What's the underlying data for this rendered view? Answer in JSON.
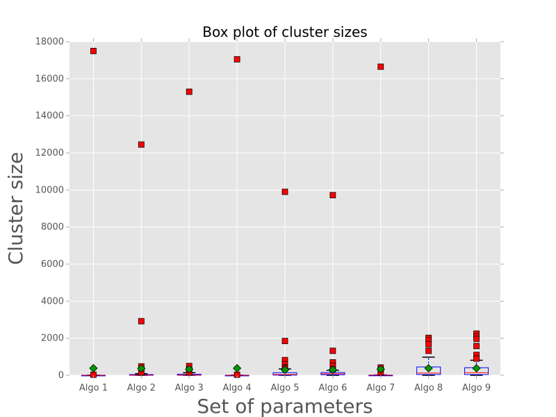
{
  "chart_data": {
    "type": "box",
    "title": "Box plot of cluster sizes",
    "xlabel": "Set of parameters",
    "ylabel": "Cluster size",
    "ylim": [
      0,
      18000
    ],
    "yticks": [
      0,
      2000,
      4000,
      6000,
      8000,
      10000,
      12000,
      14000,
      16000,
      18000
    ],
    "grid": true,
    "colors": {
      "background": "#e5e5e5",
      "grid": "#ffffff",
      "box": "#0000ff",
      "median": "#ff0000",
      "outlier": "#ff0000",
      "mean": "#009900",
      "axis": "#aaaaaa"
    },
    "categories": [
      "Algo 1",
      "Algo 2",
      "Algo 3",
      "Algo 4",
      "Algo 5",
      "Algo 6",
      "Algo 7",
      "Algo 8",
      "Algo 9"
    ],
    "boxes": [
      {
        "q1": 1,
        "median": 1,
        "q3": 5,
        "whisker_low": 1,
        "whisker_high": 8,
        "mean": 380,
        "outliers": [
          17500,
          30
        ]
      },
      {
        "q1": 2,
        "median": 10,
        "q3": 40,
        "whisker_low": 1,
        "whisker_high": 90,
        "mean": 370,
        "outliers": [
          12450,
          2920,
          480,
          300,
          150
        ]
      },
      {
        "q1": 3,
        "median": 15,
        "q3": 60,
        "whisker_low": 1,
        "whisker_high": 140,
        "mean": 330,
        "outliers": [
          15300,
          500,
          300,
          150
        ]
      },
      {
        "q1": 1,
        "median": 1,
        "q3": 5,
        "whisker_low": 1,
        "whisker_high": 8,
        "mean": 380,
        "outliers": [
          17050,
          30
        ]
      },
      {
        "q1": 10,
        "median": 40,
        "q3": 140,
        "whisker_low": 1,
        "whisker_high": 340,
        "mean": 300,
        "outliers": [
          9900,
          1850,
          820,
          600,
          430,
          360
        ]
      },
      {
        "q1": 30,
        "median": 80,
        "q3": 150,
        "whisker_low": 1,
        "whisker_high": 270,
        "mean": 300,
        "outliers": [
          9720,
          1320,
          700,
          520,
          330
        ]
      },
      {
        "q1": 1,
        "median": 3,
        "q3": 10,
        "whisker_low": 1,
        "whisker_high": 20,
        "mean": 330,
        "outliers": [
          16650,
          420,
          300,
          150
        ]
      },
      {
        "q1": 40,
        "median": 120,
        "q3": 450,
        "whisker_low": 1,
        "whisker_high": 980,
        "mean": 380,
        "outliers": [
          2020,
          1900,
          1680,
          1320
        ]
      },
      {
        "q1": 40,
        "median": 140,
        "q3": 410,
        "whisker_low": 1,
        "whisker_high": 810,
        "mean": 380,
        "outliers": [
          2250,
          2100,
          1970,
          1580,
          1100,
          900
        ]
      }
    ]
  }
}
